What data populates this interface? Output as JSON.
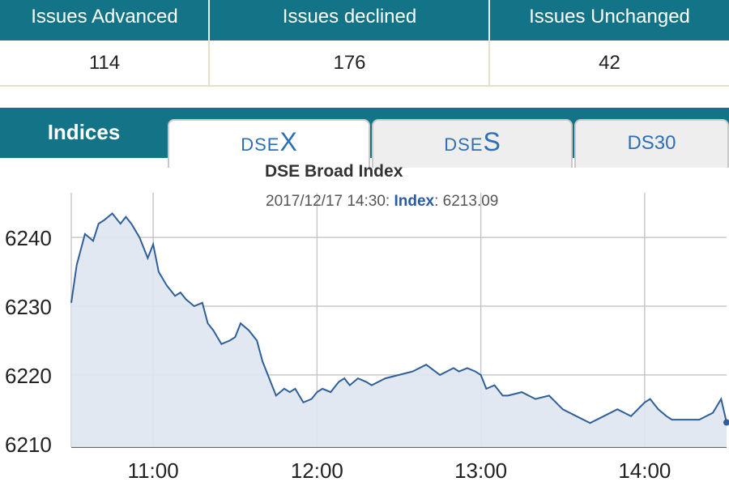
{
  "summary": {
    "headers": [
      "Issues Advanced",
      "Issues declined",
      "Issues Unchanged"
    ],
    "values": [
      "114",
      "176",
      "42"
    ]
  },
  "tabs": {
    "indices_label": "Indices",
    "dsex": {
      "prefix": "DSE",
      "suffix": "X"
    },
    "dses": {
      "prefix": "DSE",
      "suffix": "S"
    },
    "ds30": "DS30"
  },
  "colors": {
    "header_bg": "#137487",
    "tab_text": "#2d6fb6",
    "line": "#2f5f98",
    "area": "#dfe6f0"
  },
  "chart_data": {
    "type": "area",
    "title": "DSE Broad Index",
    "tooltip": {
      "timestamp": "2017/12/17 14:30:",
      "label": "Index",
      "value": "6213.09"
    },
    "y_ticks": [
      "6210",
      "6220",
      "6230",
      "6240"
    ],
    "x_ticks": [
      "11:00",
      "12:00",
      "13:00",
      "14:00"
    ],
    "ylim": [
      6209.5,
      6246.5
    ],
    "x_range": [
      "10:30",
      "14:30"
    ],
    "grid": true,
    "series": [
      {
        "x": [
          "10:30",
          "10:32",
          "10:35",
          "10:38",
          "10:40",
          "10:42",
          "10:45",
          "10:48",
          "10:50",
          "10:52",
          "10:55",
          "10:58",
          "11:00",
          "11:02",
          "11:05",
          "11:08",
          "11:10",
          "11:12",
          "11:15",
          "11:18",
          "11:20",
          "11:22",
          "11:25",
          "11:28",
          "11:30",
          "11:32",
          "11:35",
          "11:38",
          "11:40",
          "11:42",
          "11:45",
          "11:48",
          "11:50",
          "11:52",
          "11:55",
          "11:58",
          "12:00",
          "12:02",
          "12:05",
          "12:08",
          "12:10",
          "12:12",
          "12:15",
          "12:18",
          "12:20",
          "12:25",
          "12:30",
          "12:35",
          "12:40",
          "12:45",
          "12:50",
          "12:52",
          "12:55",
          "12:58",
          "13:00",
          "13:02",
          "13:05",
          "13:08",
          "13:10",
          "13:15",
          "13:20",
          "13:25",
          "13:30",
          "13:35",
          "13:40",
          "13:45",
          "13:50",
          "13:55",
          "14:00",
          "14:02",
          "14:05",
          "14:08",
          "14:10",
          "14:15",
          "14:20",
          "14:25",
          "14:28",
          "14:30"
        ],
        "values": [
          6230.5,
          6236,
          6240.5,
          6239.5,
          6242,
          6242.5,
          6243.5,
          6242,
          6243,
          6242,
          6240,
          6237,
          6239,
          6235,
          6233,
          6231.5,
          6232,
          6231,
          6230,
          6230.5,
          6227.5,
          6226.5,
          6224.5,
          6225,
          6225.5,
          6227.5,
          6226.5,
          6225,
          6222,
          6220,
          6217,
          6218,
          6217.5,
          6218,
          6216,
          6216.5,
          6217.5,
          6218,
          6217.5,
          6219,
          6219.5,
          6218.5,
          6219.5,
          6219,
          6218.5,
          6219.5,
          6220,
          6220.5,
          6221.5,
          6220,
          6221,
          6220.5,
          6221,
          6220.5,
          6220,
          6218,
          6218.5,
          6217,
          6217,
          6217.5,
          6216.5,
          6217,
          6215,
          6214,
          6213,
          6214,
          6215,
          6214,
          6216,
          6216.5,
          6215,
          6214,
          6213.5,
          6213.5,
          6213.5,
          6214.5,
          6216.5,
          6213.09
        ]
      }
    ]
  }
}
